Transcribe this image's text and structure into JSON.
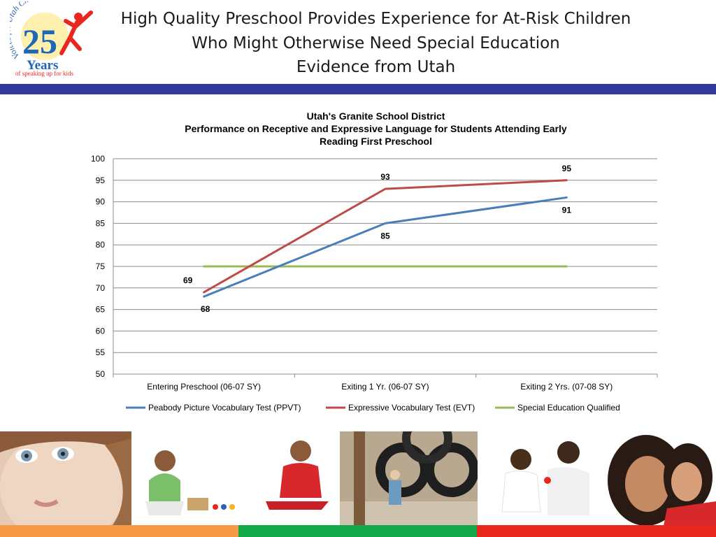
{
  "slide": {
    "title_lines": [
      "High Quality Preschool Provides Experience for At-Risk Children",
      "Who Might Otherwise Need Special Education",
      "Evidence from Utah"
    ],
    "logo": {
      "arc_text": "Voices for Utah Children",
      "number": "25",
      "word": "Years",
      "tagline": "of speaking up for kids"
    },
    "colors": {
      "band": "#333a9e",
      "stripe_orange": "#f79a45",
      "stripe_green": "#13a84a",
      "stripe_red": "#e8281e"
    }
  },
  "chart_data": {
    "type": "line",
    "title_lines": [
      "Utah's Granite School District",
      "Performance on Receptive and Expressive Language for Students Attending Early",
      "Reading First Preschool"
    ],
    "categories": [
      "Entering Preschool (06-07 SY)",
      "Exiting 1 Yr. (06-07 SY)",
      "Exiting 2 Yrs. (07-08 SY)"
    ],
    "series": [
      {
        "name": "Peabody Picture Vocabulary Test (PPVT)",
        "values": [
          68,
          85,
          91
        ],
        "color": "#4a7ebb",
        "data_labels": [
          "68",
          "85",
          "91"
        ]
      },
      {
        "name": "Expressive Vocabulary Test (EVT)",
        "values": [
          69,
          93,
          95
        ],
        "color": "#be4b48",
        "data_labels": [
          "69",
          "93",
          "95"
        ]
      },
      {
        "name": "Special Education Qualified",
        "values": [
          75,
          75,
          75
        ],
        "color": "#98b954",
        "data_labels": []
      }
    ],
    "yticks": [
      "50",
      "55",
      "60",
      "65",
      "70",
      "75",
      "80",
      "85",
      "90",
      "95",
      "100"
    ],
    "ylim": [
      50,
      100
    ],
    "grid": true,
    "legend": "bottom"
  },
  "photos": [
    {
      "name": "girl-closeup-photo"
    },
    {
      "name": "toddler-with-toys-photo"
    },
    {
      "name": "toddler-red-outfit-photo"
    },
    {
      "name": "children-tire-playground-photo"
    },
    {
      "name": "father-and-child-photo"
    },
    {
      "name": "mother-and-daughter-photo"
    }
  ]
}
